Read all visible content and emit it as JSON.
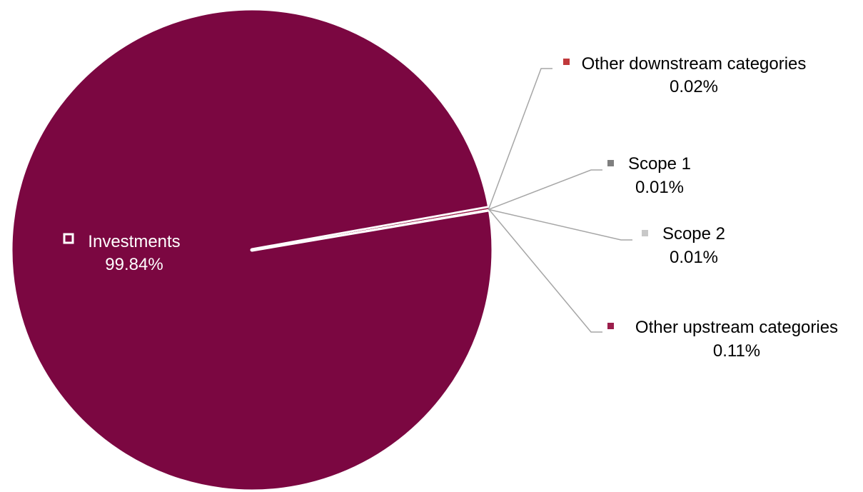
{
  "chart_data": {
    "type": "pie",
    "title": "",
    "legend": "none",
    "slices": [
      {
        "name": "Investments",
        "value": 99.84,
        "label": "99.84%",
        "color": "#7b0741"
      },
      {
        "name": "Other upstream categories",
        "value": 0.11,
        "label": "0.11%",
        "color": "#9b1e4b"
      },
      {
        "name": "Scope 2",
        "value": 0.01,
        "label": "0.01%",
        "color": "#c8c8c8"
      },
      {
        "name": "Scope 1",
        "value": 0.01,
        "label": "0.01%",
        "color": "#7f7f7f"
      },
      {
        "name": "Other downstream categories",
        "value": 0.02,
        "label": "0.02%",
        "color": "#c0393b"
      }
    ]
  }
}
